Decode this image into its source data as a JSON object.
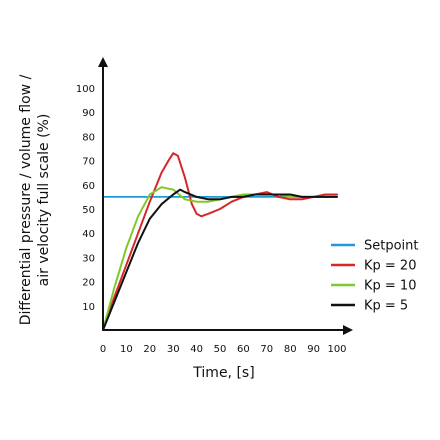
{
  "chart_data": {
    "type": "line",
    "xlabel": "Time, [s]",
    "ylabel_lines": [
      "Differential pressure / volume flow /",
      "air velocity full scale (%)"
    ],
    "xlim": [
      0,
      100
    ],
    "ylim": [
      0,
      100
    ],
    "x_ticks": [
      0,
      10,
      20,
      30,
      40,
      50,
      60,
      70,
      80,
      90,
      100
    ],
    "y_ticks": [
      10,
      20,
      30,
      40,
      50,
      60,
      70,
      80,
      90,
      100
    ],
    "grid": false,
    "legend_position": "right",
    "series": [
      {
        "name": "Setpoint",
        "color": "#1e9bd7",
        "x": [
          0,
          100
        ],
        "y": [
          55,
          55
        ]
      },
      {
        "name": "Kp = 20",
        "color": "#d62728",
        "x": [
          0,
          5,
          10,
          15,
          20,
          25,
          28,
          30,
          32,
          35,
          38,
          40,
          42,
          45,
          50,
          55,
          60,
          65,
          70,
          75,
          80,
          85,
          90,
          95,
          100
        ],
        "y": [
          0,
          14,
          27,
          40,
          53,
          65,
          70,
          73,
          72,
          63,
          52,
          48,
          47,
          48,
          50,
          53,
          55,
          56,
          57,
          55,
          54,
          54,
          55,
          56,
          56
        ]
      },
      {
        "name": "Kp = 10",
        "color": "#7ec92a",
        "x": [
          0,
          5,
          10,
          15,
          20,
          25,
          30,
          35,
          40,
          45,
          50,
          55,
          60,
          65,
          70,
          75,
          80,
          85,
          90,
          95,
          100
        ],
        "y": [
          0,
          18,
          34,
          47,
          56,
          59,
          58,
          54,
          53,
          53,
          54,
          55,
          56,
          56,
          56,
          56,
          55,
          55,
          55,
          55,
          55
        ]
      },
      {
        "name": "Kp = 5",
        "color": "#111111",
        "x": [
          0,
          5,
          10,
          15,
          20,
          25,
          30,
          33,
          35,
          40,
          45,
          50,
          55,
          60,
          65,
          70,
          75,
          80,
          85,
          90,
          95,
          100
        ],
        "y": [
          0,
          12,
          24,
          36,
          46,
          52,
          56,
          58,
          57,
          55,
          54,
          54,
          55,
          55,
          56,
          56,
          56,
          56,
          55,
          55,
          55,
          55
        ]
      }
    ]
  }
}
